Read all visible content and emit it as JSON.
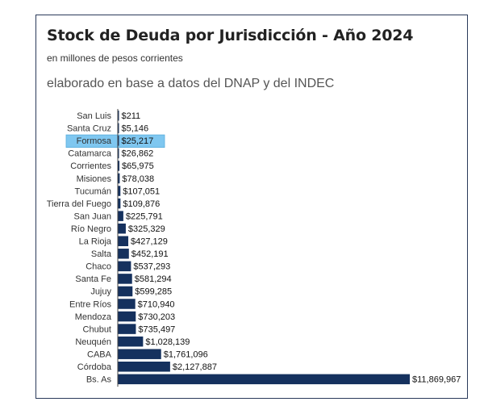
{
  "chart_data": {
    "type": "bar",
    "orientation": "horizontal",
    "title": "Stock de Deuda por Jurisdicción - Año 2024",
    "subtitle": "en millones de pesos corrientes",
    "source_note": "elaborado en base a datos del DNAP y del INDEC",
    "categories": [
      "San Luis",
      "Santa Cruz",
      "Formosa",
      "Catamarca",
      "Corrientes",
      "Misiones",
      "Tucumán",
      "Tierra del Fuego",
      "San Juan",
      "Río Negro",
      "La Rioja",
      "Salta",
      "Chaco",
      "Santa Fe",
      "Jujuy",
      "Entre Ríos",
      "Mendoza",
      "Chubut",
      "Neuquén",
      "CABA",
      "Córdoba",
      "Bs. As"
    ],
    "values": [
      211,
      5146,
      25217,
      26862,
      65975,
      78038,
      107051,
      109876,
      225791,
      325329,
      427129,
      452191,
      537293,
      581294,
      599285,
      710940,
      730203,
      735497,
      1028139,
      1761096,
      2127887,
      11869967
    ],
    "value_labels": [
      "$211",
      "$5,146",
      "$25,217",
      "$26,862",
      "$65,975",
      "$78,038",
      "$107,051",
      "$109,876",
      "$225,791",
      "$325,329",
      "$427,129",
      "$452,191",
      "$537,293",
      "$581,294",
      "$599,285",
      "$710,940",
      "$730,203",
      "$735,497",
      "$1,028,139",
      "$1,761,096",
      "$2,127,887",
      "$11,869,967"
    ],
    "highlighted_category": "Formosa",
    "bar_color": "#15315e",
    "highlight_color": "#7fc7f0",
    "xlim": [
      0,
      11869967
    ],
    "grid": false,
    "legend": "none"
  }
}
